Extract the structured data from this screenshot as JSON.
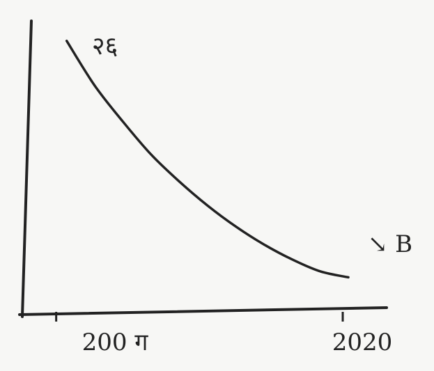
{
  "chart_data": {
    "type": "line",
    "title": "",
    "xlabel": "",
    "ylabel": "",
    "x_tick_labels": [
      "200 ग",
      "2020"
    ],
    "x": [
      2000,
      2002,
      2004,
      2006,
      2008,
      2010,
      2012,
      2014,
      2016,
      2018,
      2020
    ],
    "xlim": [
      1997,
      2020
    ],
    "ylim": [
      0,
      10
    ],
    "grid": false,
    "legend": "none",
    "series": [
      {
        "values": [
          9.1,
          7.6,
          6.4,
          5.3,
          4.4,
          3.6,
          2.9,
          2.3,
          1.8,
          1.4,
          1.2
        ]
      }
    ],
    "annotations": [
      "२६",
      "↘ B"
    ],
    "colors": {
      "ink": "#222222",
      "paper": "#f7f7f5"
    }
  }
}
